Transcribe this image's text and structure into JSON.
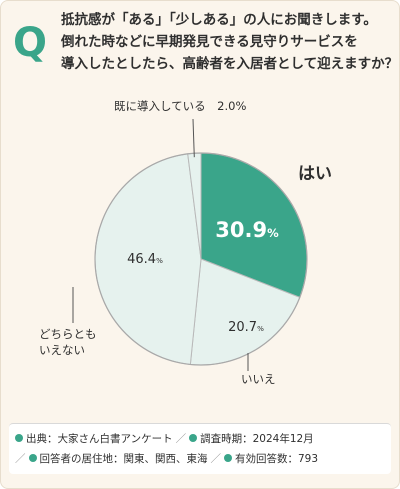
{
  "question": {
    "marker": "Q",
    "lines": [
      "抵抗感が「ある」「少しある」の人にお聞きします。",
      "倒れた時などに早期発見できる見守りサービスを",
      "導入したとしたら、高齢者を入居者として迎えますか？"
    ]
  },
  "chart_data": {
    "type": "pie",
    "unit": "%",
    "slices": [
      {
        "label": "はい",
        "value": 30.9,
        "display": "30.9",
        "color": "#3aa58a"
      },
      {
        "label": "いいえ",
        "value": 20.7,
        "display": "20.7",
        "color": "#e6f2ee"
      },
      {
        "label": "どちらとも\nいえない",
        "value": 46.4,
        "display": "46.4",
        "color": "#e6f2ee"
      },
      {
        "label": "既に導入している",
        "value": 2.0,
        "display": "2.0",
        "color": "#e6f2ee"
      }
    ]
  },
  "footer": {
    "source_label": "出典",
    "source_value": "大家さん白書アンケート",
    "period_label": "調査時期",
    "period_value": "2024年12月",
    "area_label": "回答者の居住地",
    "area_value": "関東、関西、東海",
    "count_label": "有効回答数",
    "count_value": "793"
  },
  "colors": {
    "accent": "#3aa58a",
    "slice_light": "#e6f2ee",
    "background": "#fbf5ec"
  }
}
